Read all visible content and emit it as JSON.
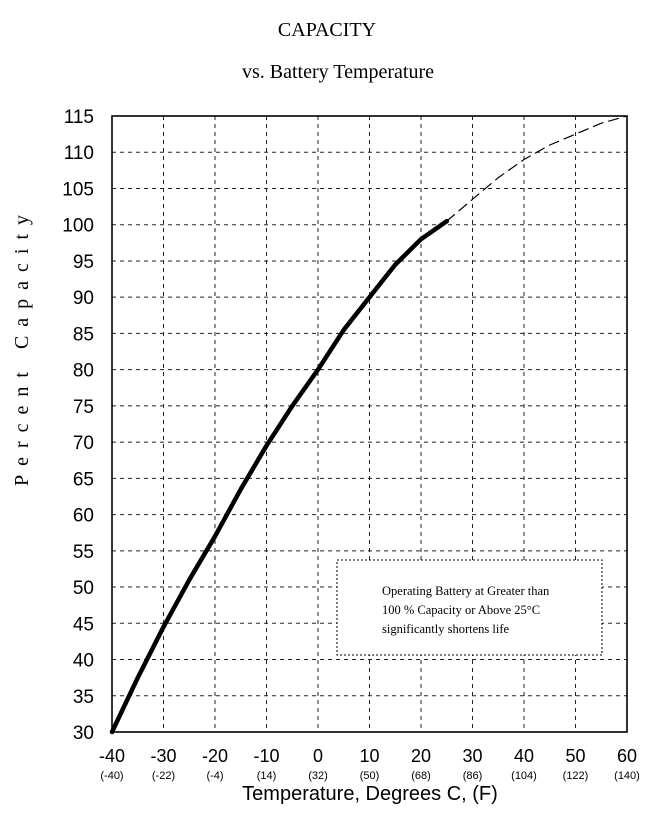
{
  "chart_data": {
    "type": "line",
    "title": "CAPACITY",
    "subtitle": "vs. Battery Temperature",
    "xlabel": "Temperature, Degrees C, (F)",
    "ylabel": "Percent Capacity",
    "xlim": [
      -40,
      60
    ],
    "ylim": [
      30,
      115
    ],
    "x_ticks": [
      -40,
      -30,
      -20,
      -10,
      0,
      10,
      20,
      30,
      40,
      50,
      60
    ],
    "x_tick_labels": [
      "-40",
      "-30",
      "-20",
      "-10",
      "0",
      "10",
      "20",
      "30",
      "40",
      "50",
      "60"
    ],
    "x_tick_labels_f": [
      "(-40)",
      "(-22)",
      "(-4)",
      "(14)",
      "(32)",
      "(50)",
      "(68)",
      "(86)",
      "(104)",
      "(122)",
      "(140)"
    ],
    "y_ticks": [
      30,
      35,
      40,
      45,
      50,
      55,
      60,
      65,
      70,
      75,
      80,
      85,
      90,
      95,
      100,
      105,
      110,
      115
    ],
    "y_tick_labels": [
      "30",
      "35",
      "40",
      "45",
      "50",
      "55",
      "60",
      "65",
      "70",
      "75",
      "80",
      "85",
      "90",
      "95",
      "100",
      "105",
      "110",
      "115"
    ],
    "grid": true,
    "series": [
      {
        "style": "solid",
        "x": [
          -40,
          -35,
          -30,
          -25,
          -20,
          -15,
          -10,
          -5,
          0,
          5,
          10,
          15,
          20,
          25
        ],
        "y": [
          30,
          37.5,
          44.5,
          51,
          57,
          63.5,
          69.5,
          75,
          80,
          85.5,
          90,
          94.5,
          98,
          100.5
        ]
      },
      {
        "style": "dashed",
        "x": [
          25,
          30,
          35,
          40,
          45,
          50,
          55,
          60
        ],
        "y": [
          100.5,
          103.5,
          106.5,
          109,
          111,
          112.5,
          114,
          115
        ]
      }
    ],
    "annotation": {
      "lines": [
        "Operating Battery at Greater than",
        "100 % Capacity or Above 25°C",
        "significantly shortens life"
      ]
    }
  }
}
